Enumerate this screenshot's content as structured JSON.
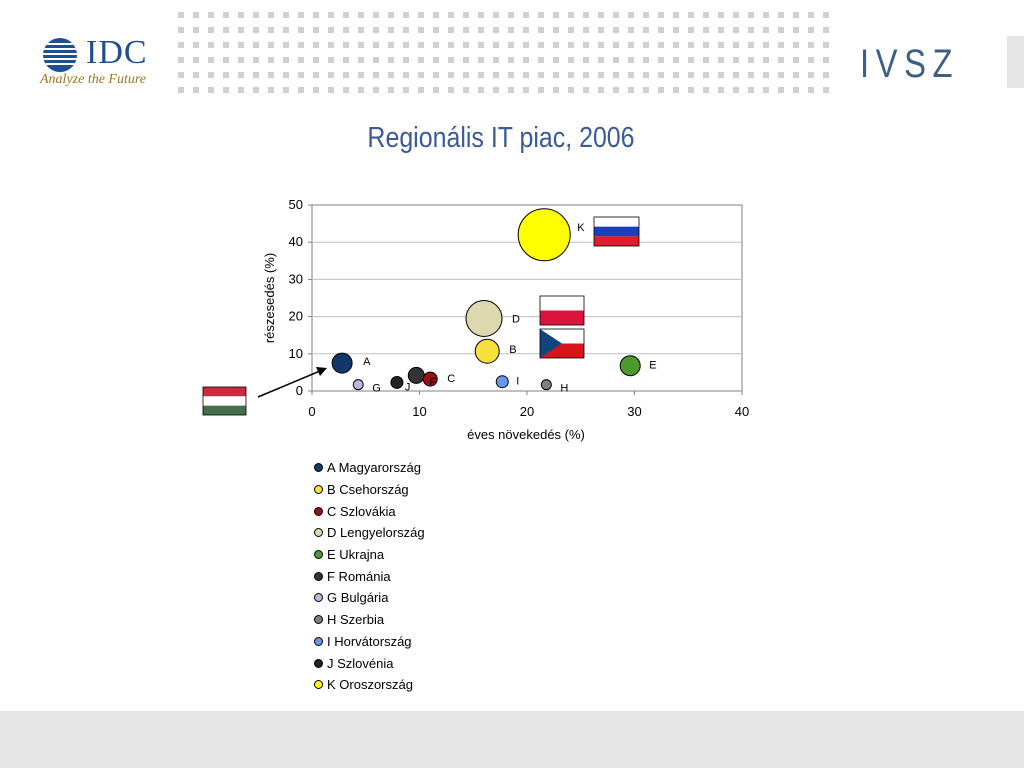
{
  "logos": {
    "idc_name": "IDC",
    "idc_tagline": "Analyze the Future",
    "partner_name": "IVSZ"
  },
  "chart_data": {
    "type": "scatter",
    "title": "Regionális IT piac, 2006",
    "xlabel": "éves növekedés (%)",
    "ylabel": "részesedés (%)",
    "xlim": [
      0,
      40
    ],
    "ylim": [
      0,
      50
    ],
    "x_ticks": [
      0,
      10,
      20,
      30,
      40
    ],
    "y_ticks": [
      0,
      10,
      20,
      30,
      40,
      50
    ],
    "grid": true,
    "legend_position": "bottom",
    "series": [
      {
        "key": "A",
        "name": "A Magyarország",
        "x": 2.8,
        "y": 7.5,
        "size": 10,
        "color": "#12386b"
      },
      {
        "key": "B",
        "name": "B Csehország",
        "x": 16.3,
        "y": 10.7,
        "size": 12,
        "color": "#f8df3c"
      },
      {
        "key": "C",
        "name": "C Szlovákia",
        "x": 11.0,
        "y": 3.2,
        "size": 7,
        "color": "#a10d12"
      },
      {
        "key": "D",
        "name": "D Lengyelország",
        "x": 16.0,
        "y": 19.5,
        "size": 18,
        "color": "#ddd8ae"
      },
      {
        "key": "E",
        "name": "E Ukrajna",
        "x": 29.6,
        "y": 6.8,
        "size": 10,
        "color": "#4c9a2e"
      },
      {
        "key": "F",
        "name": "F Románia",
        "x": 9.7,
        "y": 4.2,
        "size": 8,
        "color": "#333333"
      },
      {
        "key": "G",
        "name": "G Bulgária",
        "x": 4.3,
        "y": 1.7,
        "size": 5,
        "color": "#b8b8e2"
      },
      {
        "key": "H",
        "name": "H Szerbia",
        "x": 21.8,
        "y": 1.7,
        "size": 5,
        "color": "#808080"
      },
      {
        "key": "I",
        "name": "I Horvátország",
        "x": 17.7,
        "y": 2.5,
        "size": 6,
        "color": "#6699ee"
      },
      {
        "key": "J",
        "name": "J Szlovénia",
        "x": 7.9,
        "y": 2.3,
        "size": 6,
        "color": "#222222"
      },
      {
        "key": "K",
        "name": "K Oroszország",
        "x": 21.6,
        "y": 42.0,
        "size": 26,
        "color": "#ffff00"
      }
    ],
    "flags": [
      {
        "country": "Hungary",
        "stripes": [
          "#cd2a3e",
          "#ffffff",
          "#436f4d"
        ]
      },
      {
        "country": "Russia",
        "stripes": [
          "#ffffff",
          "#1a3fb8",
          "#e01d2c"
        ]
      },
      {
        "country": "Poland",
        "stripes": [
          "#ffffff",
          "#dc143c"
        ]
      },
      {
        "country": "Czech Republic",
        "stripes": [
          "#ffffff",
          "#d7141a"
        ],
        "triangle": "#11457e"
      }
    ]
  }
}
